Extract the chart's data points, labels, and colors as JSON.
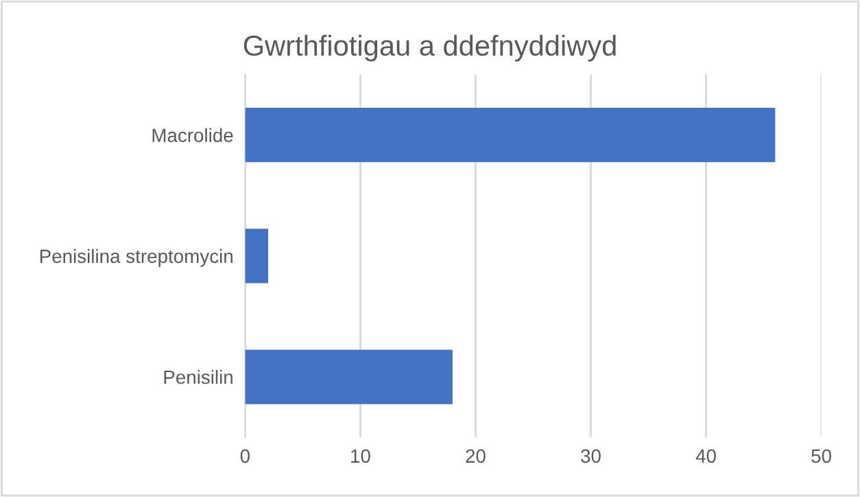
{
  "chart_data": {
    "type": "bar",
    "orientation": "horizontal",
    "title": "Gwrthfiotigau a ddefnyddiwyd",
    "categories": [
      "Macrolide",
      "Penisilina streptomycin",
      "Penisilin"
    ],
    "values": [
      46,
      2,
      18
    ],
    "color": "#4472c4",
    "xlim": [
      0,
      50
    ],
    "xticks": [
      0,
      10,
      20,
      30,
      40,
      50
    ],
    "grid": "x"
  }
}
